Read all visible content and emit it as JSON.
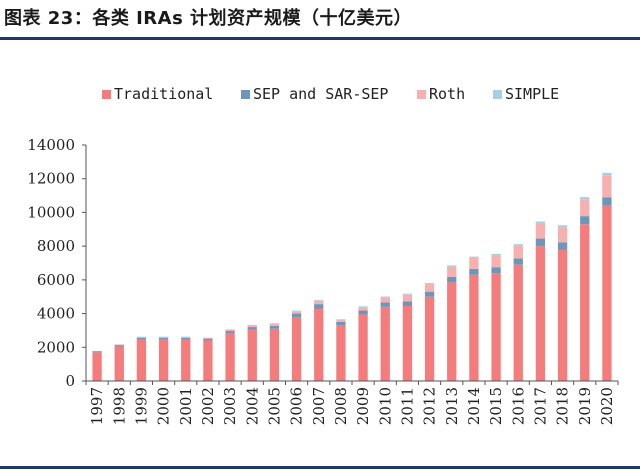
{
  "figure_title": "图表 23：各类 IRAs 计划资产规模（十亿美元）",
  "colors": {
    "traditional": "#f47c7c",
    "sep": "#6f96b8",
    "roth": "#f6b0b0",
    "simple": "#a9cde4",
    "rule": "#1f3864"
  },
  "chart_data": {
    "type": "bar",
    "stacked": true,
    "title": "",
    "xlabel": "",
    "ylabel": "",
    "ylim": [
      0,
      14000
    ],
    "yticks": [
      0,
      2000,
      4000,
      6000,
      8000,
      10000,
      12000,
      14000
    ],
    "ytick_labels": [
      "0",
      "2000",
      "4000",
      "6000",
      "8000",
      "10000",
      "12000",
      "14000"
    ],
    "grid": false,
    "legend_position": "top",
    "categories": [
      "1997",
      "1998",
      "1999",
      "2000",
      "2001",
      "2002",
      "2003",
      "2004",
      "2005",
      "2006",
      "2007",
      "2008",
      "2009",
      "2010",
      "2011",
      "2012",
      "2013",
      "2014",
      "2015",
      "2016",
      "2017",
      "2018",
      "2019",
      "2020"
    ],
    "series": [
      {
        "name": "Traditional",
        "color_key": "traditional",
        "values": [
          1700,
          2050,
          2450,
          2450,
          2450,
          2400,
          2850,
          3050,
          3100,
          3800,
          4300,
          3300,
          3950,
          4400,
          4450,
          5000,
          5850,
          6300,
          6400,
          6900,
          8000,
          7800,
          9300,
          10400
        ]
      },
      {
        "name": "SEP and SAR-SEP",
        "color_key": "sep",
        "values": [
          70,
          80,
          100,
          110,
          110,
          110,
          120,
          150,
          170,
          200,
          260,
          210,
          230,
          260,
          270,
          300,
          330,
          350,
          350,
          370,
          450,
          430,
          480,
          500
        ]
      },
      {
        "name": "Roth",
        "color_key": "roth",
        "values": [
          0,
          30,
          60,
          60,
          60,
          50,
          70,
          100,
          120,
          140,
          200,
          120,
          200,
          300,
          400,
          450,
          600,
          650,
          700,
          750,
          900,
          900,
          1000,
          1300
        ]
      },
      {
        "name": "SIMPLE",
        "color_key": "simple",
        "values": [
          10,
          15,
          20,
          20,
          20,
          20,
          30,
          30,
          40,
          40,
          50,
          40,
          50,
          50,
          60,
          60,
          80,
          80,
          90,
          100,
          110,
          110,
          130,
          150
        ]
      }
    ]
  }
}
